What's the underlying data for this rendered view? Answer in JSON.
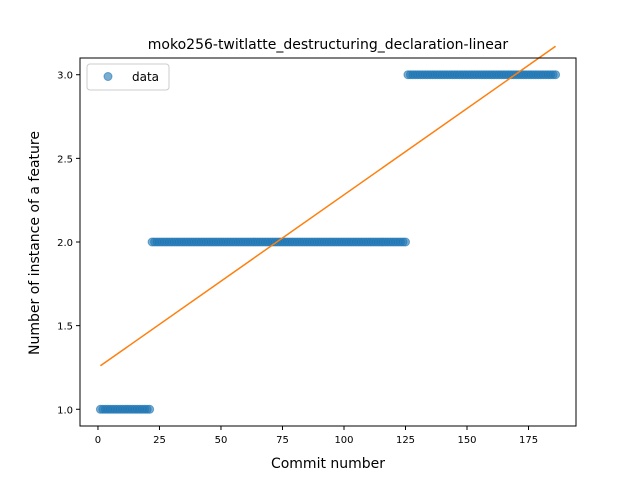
{
  "chart_data": {
    "type": "scatter",
    "title": "moko256-twitlatte_destructuring_declaration-linear",
    "xlabel": "Commit number",
    "ylabel": "Number of instance of a feature",
    "xlim": [
      -7.3,
      194.3
    ],
    "ylim": [
      0.9,
      3.1
    ],
    "xticks": [
      0,
      25,
      50,
      75,
      100,
      125,
      150,
      175
    ],
    "yticks": [
      1.0,
      1.5,
      2.0,
      2.5,
      3.0
    ],
    "xtick_labels": [
      "0",
      "25",
      "50",
      "75",
      "100",
      "125",
      "150",
      "175"
    ],
    "ytick_labels": [
      "1.0",
      "1.5",
      "2.0",
      "2.5",
      "3.0"
    ],
    "legend": {
      "placement": "upper-left",
      "entries": [
        "data"
      ]
    },
    "grid": false,
    "series": [
      {
        "name": "data",
        "kind": "scatter",
        "color": "#1f77b4",
        "segments": [
          {
            "x_start": 1,
            "x_end": 21,
            "y": 1.0
          },
          {
            "x_start": 22,
            "x_end": 125,
            "y": 2.0
          },
          {
            "x_start": 126,
            "x_end": 186,
            "y": 3.0
          }
        ]
      },
      {
        "kind": "line",
        "color": "#ff7f0e",
        "x": [
          1,
          186
        ],
        "y": [
          1.26,
          3.17
        ]
      }
    ]
  }
}
